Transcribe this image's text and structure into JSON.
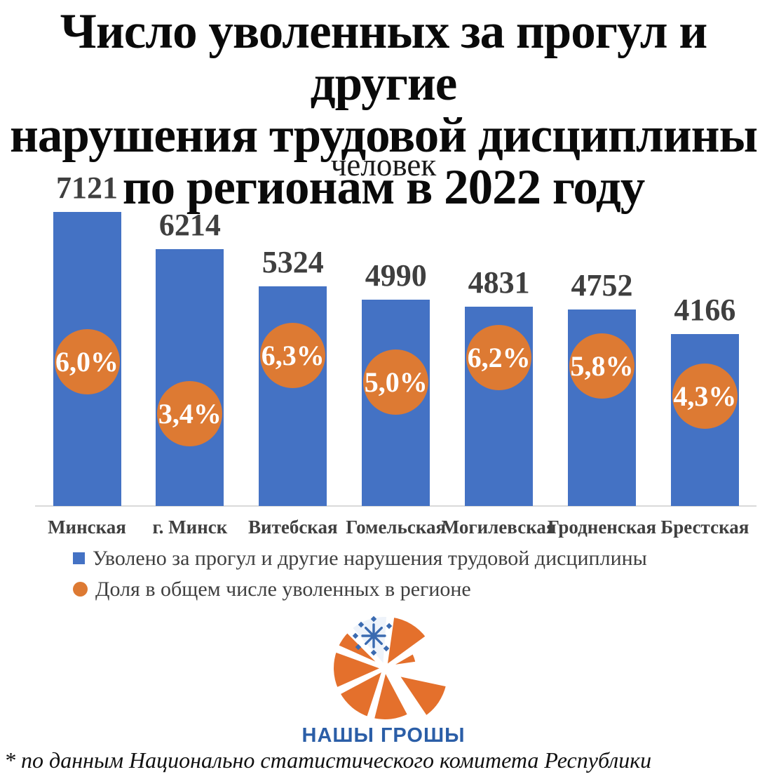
{
  "page": {
    "background": "#FFFFFF"
  },
  "title": {
    "lines": [
      "Число уволенных за прогул и другие",
      "нарушения трудовой дисциплины",
      "по регионам в 2022 году"
    ]
  },
  "chart_data": {
    "type": "bar",
    "title": "Число уволенных за прогул и другие нарушения трудовой дисциплины по регионам в 2022 году",
    "subtitle": "человек",
    "categories": [
      "Минская",
      "г. Минск",
      "Витебская",
      "Гомельская",
      "Могилевская",
      "Гродненская",
      "Брестская"
    ],
    "series": [
      {
        "name": "Уволено за прогул и другие нарушения трудовой дисциплины",
        "type": "bar",
        "color": "#4472C4",
        "values": [
          7121,
          6214,
          5324,
          4990,
          4831,
          4752,
          4166
        ]
      },
      {
        "name": "Доля в общем числе уволенных в регионе",
        "type": "bubble",
        "color": "#DD7A33",
        "values": [
          6.0,
          3.4,
          6.3,
          5.0,
          6.2,
          5.8,
          4.3
        ],
        "labels": [
          "6,0%",
          "3,4%",
          "6,3%",
          "5,0%",
          "6,2%",
          "5,8%",
          "4,3%"
        ]
      }
    ],
    "ylim": [
      0,
      8000
    ],
    "grid": false,
    "legend_position": "bottom-left"
  },
  "legend": {
    "items": [
      {
        "marker": "square",
        "color": "#4472C4",
        "label": "Уволено за прогул и другие нарушения трудовой дисциплины"
      },
      {
        "marker": "circle",
        "color": "#DD7A33",
        "label": "Доля в общем числе уволенных в регионе"
      }
    ]
  },
  "logo": {
    "wordmark": "НАШЫ ГРОШЫ",
    "wordmark_color": "#2B5EA7",
    "orange": "#E4702C",
    "ornament_blue": "#3A6AB0"
  },
  "footnote": "* по данным Национально статистического комитета Республики",
  "colors": {
    "bar": "#4472C4",
    "bubble": "#DD7A33",
    "value_label": "#3F3F3F",
    "axis_line": "#D9D9D9",
    "category_label": "#404040",
    "legend_text": "#404040"
  }
}
